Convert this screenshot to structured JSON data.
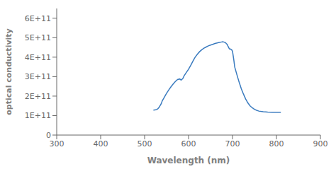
{
  "chart_data": {
    "type": "line",
    "xlabel": "Wavelength (nm)",
    "ylabel": "optical conductivity",
    "x": [
      520,
      525,
      528,
      530,
      533,
      535,
      538,
      540,
      545,
      550,
      555,
      560,
      565,
      570,
      575,
      580,
      583,
      587,
      590,
      595,
      600,
      605,
      610,
      615,
      620,
      625,
      630,
      635,
      640,
      645,
      650,
      655,
      660,
      665,
      670,
      675,
      678,
      680,
      683,
      685,
      688,
      690,
      693,
      695,
      698,
      700,
      703,
      705,
      710,
      715,
      720,
      725,
      730,
      735,
      740,
      745,
      750,
      755,
      760,
      770,
      780,
      790,
      800,
      810
    ],
    "values": [
      128000000000.0,
      130000000000.0,
      132000000000.0,
      135000000000.0,
      142000000000.0,
      150000000000.0,
      162000000000.0,
      175000000000.0,
      195000000000.0,
      215000000000.0,
      232000000000.0,
      248000000000.0,
      262000000000.0,
      275000000000.0,
      285000000000.0,
      288000000000.0,
      282000000000.0,
      290000000000.0,
      305000000000.0,
      322000000000.0,
      338000000000.0,
      358000000000.0,
      380000000000.0,
      400000000000.0,
      415000000000.0,
      428000000000.0,
      438000000000.0,
      446000000000.0,
      452000000000.0,
      458000000000.0,
      462000000000.0,
      466000000000.0,
      470000000000.0,
      473000000000.0,
      476000000000.0,
      478000000000.0,
      479000000000.0,
      478000000000.0,
      476000000000.0,
      472000000000.0,
      465000000000.0,
      455000000000.0,
      442000000000.0,
      442000000000.0,
      438000000000.0,
      430000000000.0,
      385000000000.0,
      350000000000.0,
      310000000000.0,
      272000000000.0,
      238000000000.0,
      210000000000.0,
      185000000000.0,
      165000000000.0,
      150000000000.0,
      140000000000.0,
      132000000000.0,
      127000000000.0,
      123000000000.0,
      120000000000.0,
      118000000000.0,
      117000000000.0,
      117000000000.0,
      117000000000.0
    ],
    "color": "#3a7bbf",
    "xlim": [
      300,
      900
    ],
    "ylim": [
      0,
      650000000000.0
    ],
    "xticks": [
      300,
      400,
      500,
      600,
      700,
      800,
      900
    ],
    "yticks": [
      0,
      {
        "value": 100000000000.0,
        "label": "1E+11"
      },
      {
        "value": 200000000000.0,
        "label": "2E+11"
      },
      {
        "value": 300000000000.0,
        "label": "3E+11"
      },
      {
        "value": 400000000000.0,
        "label": "4E+11"
      },
      {
        "value": 500000000000.0,
        "label": "5E+11"
      },
      {
        "value": 600000000000.0,
        "label": "6E+11"
      }
    ],
    "grid": false
  }
}
